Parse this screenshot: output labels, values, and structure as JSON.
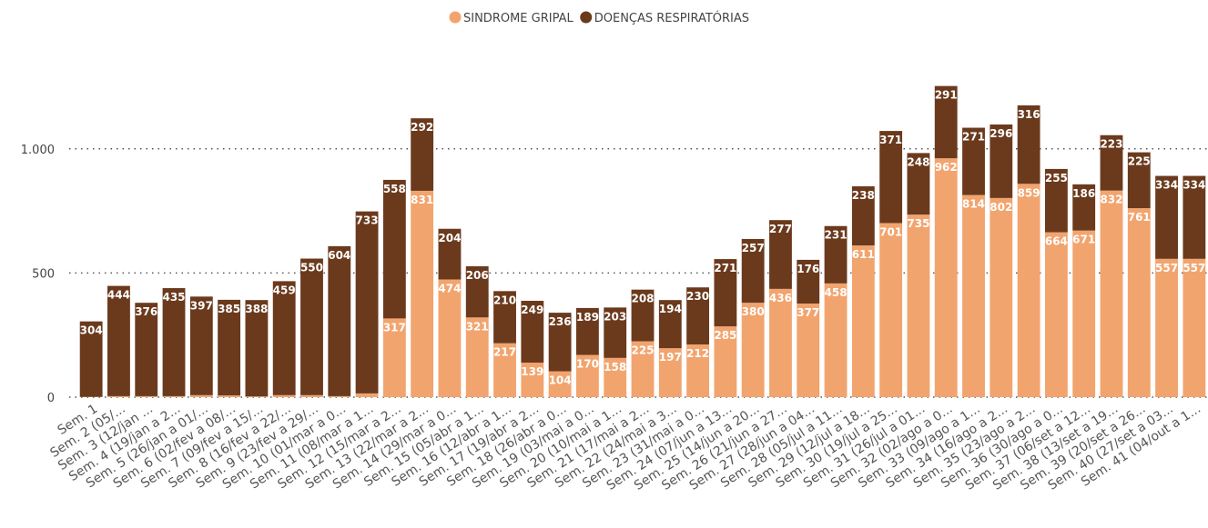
{
  "chart_data": {
    "type": "stacked_bar",
    "categories": [
      "Sem. 1",
      "Sem. 2 (05/...",
      "Sem. 3 (12/jan ...",
      "Sem. 4 (19/jan a 2...",
      "Sem. 5 (26/jan a 01/...",
      "Sem. 6 (02/fev a 08/...",
      "Sem. 7 (09/fev a 15/...",
      "Sem. 8 (16/fev a 22/...",
      "Sem. 9 (23/fev a 29/...",
      "Sem. 10 (01/mar a 0...",
      "Sem. 11 (08/mar a 1...",
      "Sem. 12 (15/mar a 2...",
      "Sem. 13 (22/mar a 2...",
      "Sem. 14 (29/mar a 0...",
      "Sem. 15 (05/abr a 1...",
      "Sem. 16 (12/abr a 1...",
      "Sem. 17 (19/abr a 2...",
      "Sem. 18 (26/abr a 0...",
      "Sem. 19 (03/mai a 0...",
      "Sem. 20 (10/mai a 1...",
      "Sem. 21 (17/mai a 2...",
      "Sem. 22 (24/mai a 3...",
      "Sem. 23 (31/mai a 0...",
      "Sem. 24 (07/jun a 13...",
      "Sem. 25 (14/jun a 20...",
      "Sem. 26 (21/jun a 27...",
      "Sem. 27 (28/jun a 04...",
      "Sem. 28 (05/jul a 11...",
      "Sem. 29 (12/jul a 18...",
      "Sem. 30 (19/jul a 25...",
      "Sem. 31 (26/jul a 01...",
      "Sem. 32 (02/ago a 0...",
      "Sem. 33 (09/ago a 1...",
      "Sem. 34 (16/ago a 2...",
      "Sem. 35 (23/ago a 2...",
      "Sem. 36 (30/ago a 0...",
      "Sem. 37 (06/set a 12...",
      "Sem. 38 (13/set a 19...",
      "Sem. 39 (20/set a 26...",
      "Sem. 40 (27/set a 03...",
      "Sem. 41 (04/out a 1..."
    ],
    "series": [
      {
        "name": "SINDROME GRIPAL",
        "color": "#f2a46e",
        "values": [
          1,
          4,
          4,
          4,
          8,
          7,
          3,
          8,
          8,
          4,
          15,
          317,
          831,
          474,
          321,
          217,
          139,
          104,
          170,
          158,
          225,
          197,
          212,
          285,
          380,
          436,
          377,
          458,
          611,
          701,
          735,
          962,
          814,
          802,
          859,
          664,
          671,
          832,
          761,
          557,
          557
        ]
      },
      {
        "name": "DOENÇAS RESPIRATÓRIAS",
        "color": "#6b3a1d",
        "values": [
          304,
          444,
          376,
          435,
          397,
          385,
          388,
          459,
          550,
          604,
          733,
          558,
          292,
          204,
          206,
          210,
          249,
          236,
          189,
          203,
          208,
          194,
          230,
          271,
          257,
          277,
          176,
          231,
          238,
          371,
          248,
          291,
          271,
          296,
          316,
          255,
          186,
          223,
          225,
          334,
          334
        ]
      }
    ],
    "ylim": [
      0,
      1270
    ],
    "yticks": [
      0,
      500,
      {
        "value": 1000,
        "label": "1.000"
      }
    ],
    "grid": true,
    "legend": "top"
  }
}
